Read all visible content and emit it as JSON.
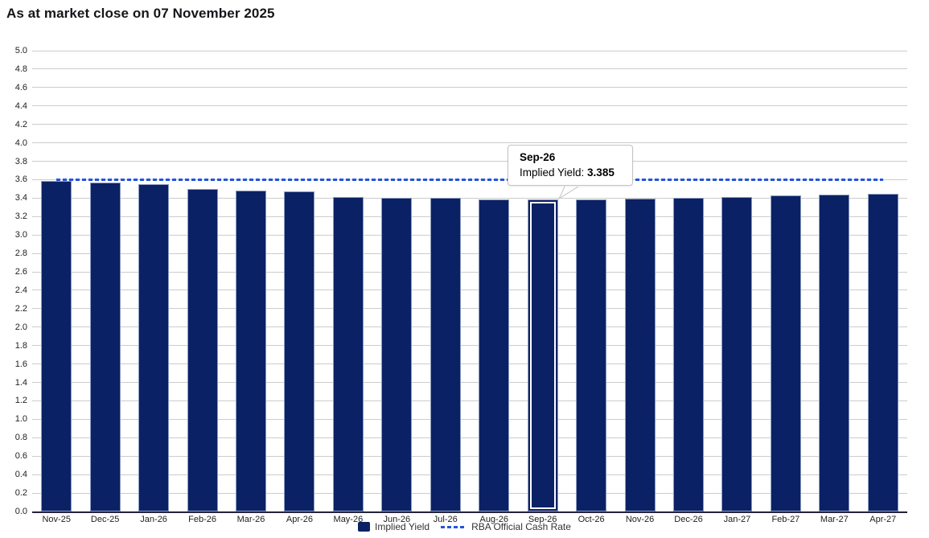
{
  "title": "As at market close on 07 November 2025",
  "chart_data": {
    "type": "bar",
    "title": "As at market close on 07 November 2025",
    "categories": [
      "Nov-25",
      "Dec-25",
      "Jan-26",
      "Feb-26",
      "Mar-26",
      "Apr-26",
      "May-26",
      "Jun-26",
      "Jul-26",
      "Aug-26",
      "Sep-26",
      "Oct-26",
      "Nov-26",
      "Dec-26",
      "Jan-27",
      "Feb-27",
      "Mar-27",
      "Apr-27"
    ],
    "series": [
      {
        "name": "Implied Yield",
        "type": "column",
        "color": "#0b2165",
        "values": [
          3.59,
          3.565,
          3.55,
          3.5,
          3.485,
          3.475,
          3.415,
          3.405,
          3.4,
          3.385,
          3.385,
          3.39,
          3.395,
          3.405,
          3.41,
          3.425,
          3.435,
          3.45
        ]
      },
      {
        "name": "RBA Official Cash Rate",
        "type": "dashed-line",
        "color": "#2355dc",
        "value": 3.6
      }
    ],
    "xlabel": "",
    "ylabel": "",
    "ylim": [
      0.0,
      5.0
    ],
    "ytick_step": 0.2,
    "yticks": [
      "0.0",
      "0.2",
      "0.4",
      "0.6",
      "0.8",
      "1.0",
      "1.2",
      "1.4",
      "1.6",
      "1.8",
      "2.0",
      "2.2",
      "2.4",
      "2.6",
      "2.8",
      "3.0",
      "3.2",
      "3.4",
      "3.6",
      "3.8",
      "4.0",
      "4.2",
      "4.4",
      "4.6",
      "4.8",
      "5.0"
    ],
    "grid": "horizontal",
    "legend_position": "bottom-center",
    "highlighted_category": "Sep-26",
    "highlighted_index": 10
  },
  "tooltip": {
    "title": "Sep-26",
    "label": "Implied Yield: ",
    "value": "3.385"
  },
  "legend": {
    "items": [
      {
        "label": "Implied Yield",
        "swatch": "bar-swatch"
      },
      {
        "label": "RBA Official Cash Rate",
        "swatch": "dashed-line-swatch"
      }
    ]
  },
  "colors": {
    "bar_fill": "#0b2165",
    "bar_border": "#8d9cc0",
    "rba_line": "#2355dc",
    "gridline": "#cccccc",
    "axis_line": "#23233a",
    "text": "#222222"
  }
}
